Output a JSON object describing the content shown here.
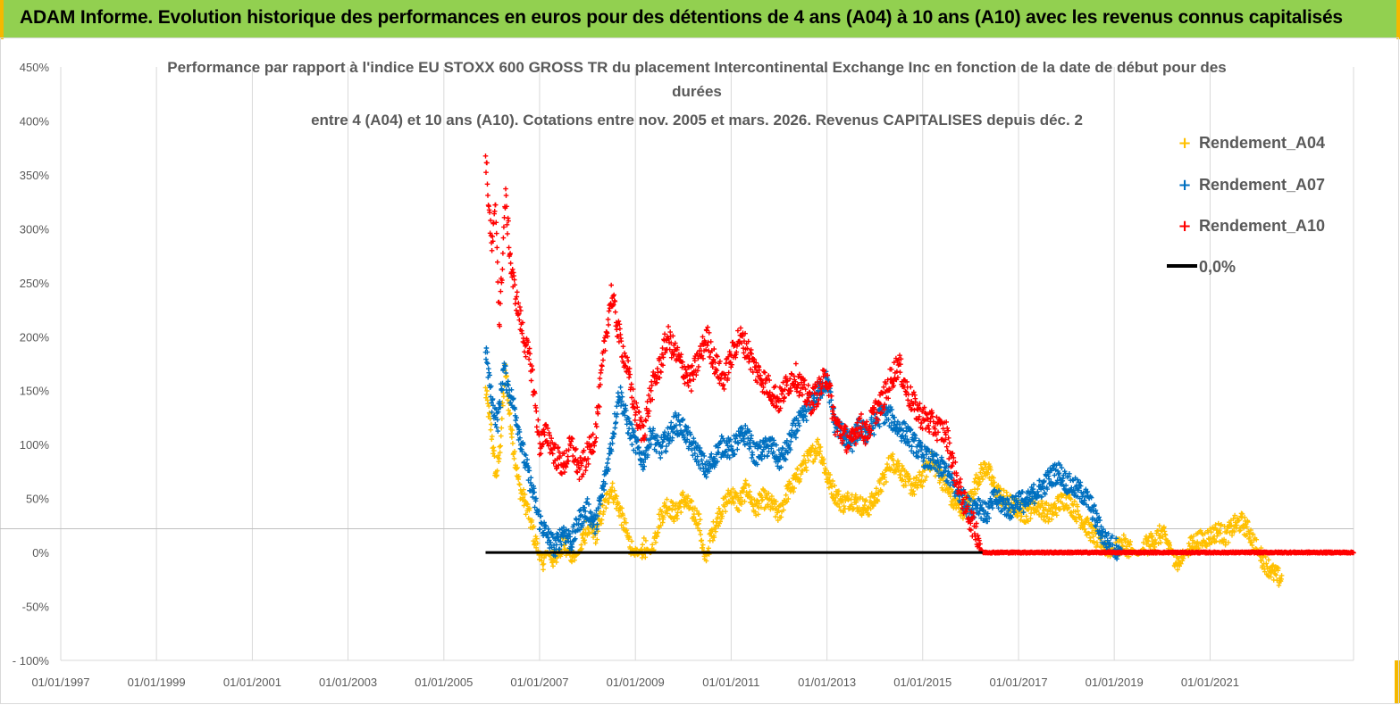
{
  "banner": {
    "title": "ADAM Informe. Evolution historique des performances en euros pour des détentions de 4 ans (A04) à 10 ans (A10) avec les revenus connus capitalisés",
    "color": "#92d050",
    "accent_color": "#f5b800"
  },
  "chart_data": {
    "type": "scatter",
    "title_lines": [
      "Performance par rapport à l'indice EU STOXX 600 GROSS TR  du placement Intercontinental Exchange Inc en fonction de la date de début pour des",
      "durées",
      "entre 4 (A04) et 10 ans (A10).  Cotations entre nov. 2005 et mars. 2026. Revenus CAPITALISES depuis déc. 2"
    ],
    "x_axis": {
      "type": "date",
      "range": [
        "1997-01-01",
        "2023-12-31"
      ],
      "ticks": [
        "01/01/1997",
        "01/01/1999",
        "01/01/2001",
        "01/01/2003",
        "01/01/2005",
        "01/01/2007",
        "01/01/2009",
        "01/01/2011",
        "01/01/2013",
        "01/01/2015",
        "01/01/2017",
        "01/01/2019",
        "01/01/2021"
      ]
    },
    "y_axis": {
      "unit": "%",
      "range": [
        -100,
        450
      ],
      "tick_values": [
        450,
        400,
        350,
        300,
        250,
        200,
        150,
        100,
        50,
        0,
        -50,
        -100
      ],
      "tick_labels": [
        "450%",
        "400%",
        "350%",
        "300%",
        "250%",
        "200%",
        "150%",
        "100%",
        "50%",
        "0%",
        "-50%",
        "- 100%"
      ]
    },
    "legend": {
      "position": "top-right",
      "entries": [
        {
          "label": "Rendement_A04",
          "color": "#ffc000",
          "marker": "+"
        },
        {
          "label": "Rendement_A07",
          "color": "#0070c0",
          "marker": "+"
        },
        {
          "label": "Rendement_A10",
          "color": "#ff0000",
          "marker": "+"
        },
        {
          "label": "0,0%",
          "color": "#000000",
          "marker": "line"
        }
      ]
    },
    "series": [
      {
        "name": "Rendement_A04",
        "color": "#ffc000",
        "points": [
          [
            "2005-11-15",
            150
          ],
          [
            "2006-01-01",
            110
          ],
          [
            "2006-02-01",
            70
          ],
          [
            "2006-03-01",
            90
          ],
          [
            "2006-04-15",
            170
          ],
          [
            "2006-06-01",
            110
          ],
          [
            "2006-08-01",
            60
          ],
          [
            "2006-10-01",
            40
          ],
          [
            "2006-12-01",
            10
          ],
          [
            "2007-01-15",
            -10
          ],
          [
            "2007-03-01",
            0
          ],
          [
            "2007-05-01",
            -8
          ],
          [
            "2007-07-01",
            10
          ],
          [
            "2007-09-01",
            -5
          ],
          [
            "2007-11-01",
            0
          ],
          [
            "2008-01-01",
            25
          ],
          [
            "2008-03-01",
            15
          ],
          [
            "2008-05-01",
            40
          ],
          [
            "2008-07-01",
            60
          ],
          [
            "2008-09-01",
            40
          ],
          [
            "2008-11-01",
            15
          ],
          [
            "2009-01-01",
            -5
          ],
          [
            "2009-03-01",
            5
          ],
          [
            "2009-05-01",
            0
          ],
          [
            "2009-07-01",
            30
          ],
          [
            "2009-09-01",
            45
          ],
          [
            "2009-11-01",
            35
          ],
          [
            "2010-01-01",
            50
          ],
          [
            "2010-03-01",
            40
          ],
          [
            "2010-05-01",
            30
          ],
          [
            "2010-06-15",
            -10
          ],
          [
            "2010-08-01",
            15
          ],
          [
            "2010-10-01",
            35
          ],
          [
            "2011-01-01",
            55
          ],
          [
            "2011-03-01",
            45
          ],
          [
            "2011-05-01",
            60
          ],
          [
            "2011-07-01",
            40
          ],
          [
            "2011-09-01",
            50
          ],
          [
            "2011-11-01",
            45
          ],
          [
            "2012-01-01",
            35
          ],
          [
            "2012-03-01",
            55
          ],
          [
            "2012-05-01",
            65
          ],
          [
            "2012-07-01",
            80
          ],
          [
            "2012-09-01",
            90
          ],
          [
            "2012-11-01",
            100
          ],
          [
            "2013-01-01",
            70
          ],
          [
            "2013-03-01",
            55
          ],
          [
            "2013-05-01",
            45
          ],
          [
            "2013-07-01",
            50
          ],
          [
            "2013-09-01",
            45
          ],
          [
            "2013-11-01",
            40
          ],
          [
            "2014-01-01",
            50
          ],
          [
            "2014-03-01",
            65
          ],
          [
            "2014-05-01",
            85
          ],
          [
            "2014-07-01",
            80
          ],
          [
            "2014-09-01",
            65
          ],
          [
            "2014-11-01",
            60
          ],
          [
            "2015-01-01",
            70
          ],
          [
            "2015-03-01",
            85
          ],
          [
            "2015-05-01",
            75
          ],
          [
            "2015-07-01",
            60
          ],
          [
            "2015-09-01",
            45
          ],
          [
            "2015-11-01",
            40
          ],
          [
            "2016-01-01",
            50
          ],
          [
            "2016-03-01",
            70
          ],
          [
            "2016-05-01",
            80
          ],
          [
            "2016-07-01",
            60
          ],
          [
            "2016-09-01",
            50
          ],
          [
            "2016-11-01",
            45
          ],
          [
            "2017-01-01",
            40
          ],
          [
            "2017-03-01",
            35
          ],
          [
            "2017-05-01",
            45
          ],
          [
            "2017-07-01",
            40
          ],
          [
            "2017-09-01",
            35
          ],
          [
            "2017-11-01",
            45
          ],
          [
            "2018-01-01",
            50
          ],
          [
            "2018-03-01",
            40
          ],
          [
            "2018-05-01",
            30
          ],
          [
            "2018-07-01",
            20
          ],
          [
            "2018-09-01",
            10
          ],
          [
            "2018-11-01",
            5
          ],
          [
            "2019-01-01",
            2
          ],
          [
            "2019-03-01",
            8
          ],
          [
            "2019-05-01",
            4
          ],
          [
            "2019-07-01",
            -2
          ],
          [
            "2019-09-01",
            6
          ],
          [
            "2019-11-01",
            12
          ],
          [
            "2020-01-01",
            18
          ],
          [
            "2020-03-01",
            5
          ],
          [
            "2020-05-01",
            -10
          ],
          [
            "2020-07-01",
            0
          ],
          [
            "2020-09-01",
            10
          ],
          [
            "2020-11-01",
            12
          ],
          [
            "2021-01-01",
            15
          ],
          [
            "2021-03-01",
            20
          ],
          [
            "2021-05-01",
            15
          ],
          [
            "2021-07-01",
            25
          ],
          [
            "2021-09-01",
            28
          ],
          [
            "2021-11-01",
            18
          ],
          [
            "2022-01-01",
            0
          ],
          [
            "2022-03-01",
            -10
          ],
          [
            "2022-05-01",
            -20
          ],
          [
            "2022-07-01",
            -25
          ]
        ]
      },
      {
        "name": "Rendement_A07",
        "color": "#0070c0",
        "points": [
          [
            "2005-11-15",
            190
          ],
          [
            "2006-01-01",
            140
          ],
          [
            "2006-02-15",
            120
          ],
          [
            "2006-04-01",
            170
          ],
          [
            "2006-05-15",
            150
          ],
          [
            "2006-07-01",
            130
          ],
          [
            "2006-09-01",
            90
          ],
          [
            "2006-11-01",
            60
          ],
          [
            "2007-01-01",
            30
          ],
          [
            "2007-03-01",
            15
          ],
          [
            "2007-05-01",
            5
          ],
          [
            "2007-07-01",
            20
          ],
          [
            "2007-09-01",
            10
          ],
          [
            "2007-11-01",
            30
          ],
          [
            "2008-01-01",
            40
          ],
          [
            "2008-03-01",
            25
          ],
          [
            "2008-05-01",
            60
          ],
          [
            "2008-07-01",
            100
          ],
          [
            "2008-09-01",
            150
          ],
          [
            "2008-11-01",
            120
          ],
          [
            "2009-01-01",
            100
          ],
          [
            "2009-03-01",
            85
          ],
          [
            "2009-05-01",
            110
          ],
          [
            "2009-07-01",
            95
          ],
          [
            "2009-09-01",
            105
          ],
          [
            "2009-11-01",
            120
          ],
          [
            "2010-01-01",
            115
          ],
          [
            "2010-03-01",
            100
          ],
          [
            "2010-05-01",
            90
          ],
          [
            "2010-07-01",
            75
          ],
          [
            "2010-09-01",
            90
          ],
          [
            "2010-11-01",
            100
          ],
          [
            "2011-01-01",
            95
          ],
          [
            "2011-03-01",
            105
          ],
          [
            "2011-05-01",
            110
          ],
          [
            "2011-07-01",
            90
          ],
          [
            "2011-09-01",
            95
          ],
          [
            "2011-11-01",
            100
          ],
          [
            "2012-01-01",
            85
          ],
          [
            "2012-03-01",
            95
          ],
          [
            "2012-05-01",
            115
          ],
          [
            "2012-07-01",
            125
          ],
          [
            "2012-09-01",
            140
          ],
          [
            "2012-11-01",
            150
          ],
          [
            "2013-01-01",
            160
          ],
          [
            "2013-03-01",
            120
          ],
          [
            "2013-05-01",
            110
          ],
          [
            "2013-07-01",
            100
          ],
          [
            "2013-09-01",
            115
          ],
          [
            "2013-11-01",
            110
          ],
          [
            "2014-01-01",
            120
          ],
          [
            "2014-03-01",
            130
          ],
          [
            "2014-05-01",
            125
          ],
          [
            "2014-07-01",
            115
          ],
          [
            "2014-09-01",
            110
          ],
          [
            "2014-11-01",
            100
          ],
          [
            "2015-01-01",
            90
          ],
          [
            "2015-03-01",
            85
          ],
          [
            "2015-05-01",
            80
          ],
          [
            "2015-07-01",
            75
          ],
          [
            "2015-09-01",
            60
          ],
          [
            "2015-11-01",
            50
          ],
          [
            "2016-01-01",
            40
          ],
          [
            "2016-03-01",
            45
          ],
          [
            "2016-05-01",
            35
          ],
          [
            "2016-07-01",
            50
          ],
          [
            "2016-09-01",
            45
          ],
          [
            "2016-11-01",
            40
          ],
          [
            "2017-01-01",
            50
          ],
          [
            "2017-03-01",
            45
          ],
          [
            "2017-05-01",
            55
          ],
          [
            "2017-07-01",
            60
          ],
          [
            "2017-09-01",
            70
          ],
          [
            "2017-11-01",
            75
          ],
          [
            "2018-01-01",
            65
          ],
          [
            "2018-03-01",
            60
          ],
          [
            "2018-05-01",
            55
          ],
          [
            "2018-07-01",
            45
          ],
          [
            "2018-09-01",
            25
          ],
          [
            "2018-11-01",
            10
          ],
          [
            "2019-01-01",
            5
          ],
          [
            "2019-03-01",
            2
          ]
        ]
      },
      {
        "name": "Rendement_A10",
        "color": "#ff0000",
        "points": [
          [
            "2005-11-15",
            370
          ],
          [
            "2006-01-01",
            280
          ],
          [
            "2006-02-01",
            320
          ],
          [
            "2006-03-01",
            210
          ],
          [
            "2006-04-15",
            330
          ],
          [
            "2006-06-01",
            260
          ],
          [
            "2006-07-15",
            230
          ],
          [
            "2006-09-01",
            200
          ],
          [
            "2006-11-01",
            170
          ],
          [
            "2007-01-01",
            100
          ],
          [
            "2007-03-01",
            110
          ],
          [
            "2007-05-01",
            90
          ],
          [
            "2007-07-01",
            80
          ],
          [
            "2007-09-01",
            100
          ],
          [
            "2007-11-01",
            75
          ],
          [
            "2008-01-01",
            90
          ],
          [
            "2008-03-01",
            110
          ],
          [
            "2008-05-01",
            180
          ],
          [
            "2008-07-01",
            240
          ],
          [
            "2008-09-01",
            200
          ],
          [
            "2008-11-01",
            170
          ],
          [
            "2009-01-01",
            130
          ],
          [
            "2009-03-01",
            110
          ],
          [
            "2009-05-01",
            150
          ],
          [
            "2009-07-01",
            170
          ],
          [
            "2009-09-01",
            200
          ],
          [
            "2009-11-01",
            185
          ],
          [
            "2010-01-01",
            170
          ],
          [
            "2010-03-01",
            160
          ],
          [
            "2010-05-01",
            180
          ],
          [
            "2010-07-01",
            200
          ],
          [
            "2010-09-01",
            175
          ],
          [
            "2010-11-01",
            160
          ],
          [
            "2011-01-01",
            180
          ],
          [
            "2011-03-01",
            200
          ],
          [
            "2011-05-01",
            190
          ],
          [
            "2011-07-01",
            170
          ],
          [
            "2011-09-01",
            160
          ],
          [
            "2011-11-01",
            150
          ],
          [
            "2012-01-01",
            140
          ],
          [
            "2012-03-01",
            155
          ],
          [
            "2012-05-01",
            165
          ],
          [
            "2012-07-01",
            150
          ],
          [
            "2012-09-01",
            140
          ],
          [
            "2012-11-01",
            150
          ],
          [
            "2013-01-01",
            165
          ],
          [
            "2013-03-01",
            120
          ],
          [
            "2013-05-01",
            110
          ],
          [
            "2013-07-01",
            100
          ],
          [
            "2013-09-01",
            120
          ],
          [
            "2013-11-01",
            110
          ],
          [
            "2014-01-01",
            130
          ],
          [
            "2014-03-01",
            140
          ],
          [
            "2014-05-01",
            160
          ],
          [
            "2014-07-01",
            175
          ],
          [
            "2014-09-01",
            150
          ],
          [
            "2014-11-01",
            135
          ],
          [
            "2015-01-01",
            125
          ],
          [
            "2015-03-01",
            120
          ],
          [
            "2015-05-01",
            115
          ],
          [
            "2015-07-01",
            110
          ],
          [
            "2015-09-01",
            75
          ],
          [
            "2015-11-01",
            50
          ],
          [
            "2016-01-01",
            30
          ],
          [
            "2016-02-15",
            20
          ],
          [
            "2016-04-01",
            0
          ],
          [
            "2018-01-01",
            0
          ],
          [
            "2020-01-01",
            0
          ],
          [
            "2022-01-01",
            0
          ],
          [
            "2023-12-31",
            0
          ]
        ]
      },
      {
        "name": "0,0%",
        "color": "#000000",
        "type": "line",
        "points": [
          [
            "2005-11-15",
            0
          ],
          [
            "2016-04-01",
            0
          ]
        ]
      }
    ]
  }
}
